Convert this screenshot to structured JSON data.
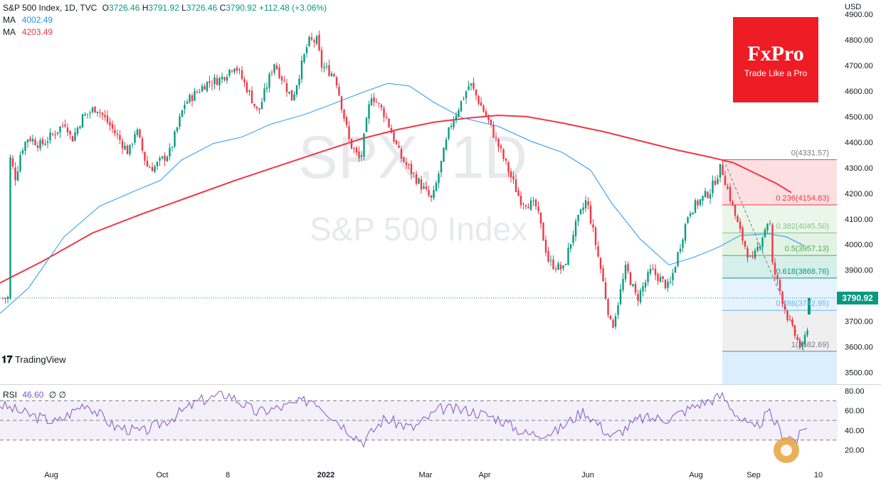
{
  "legend": {
    "symbol_line": "S&P 500 Index, 1D, TVC",
    "o_label": "O",
    "o": "3726.46",
    "h_label": "H",
    "h": "3791.92",
    "l_label": "L",
    "l": "3726.46",
    "c_label": "C",
    "c": "3790.92",
    "change": "+112.48 (+3.06%)",
    "ma_label": "MA",
    "ma1": "4002.49",
    "ma2": "4203.49"
  },
  "watermark": {
    "ticker": "SPX, 1D",
    "name": "S&P 500 Index"
  },
  "brand": {
    "logo": "FxPro",
    "tagline": "Trade Like a Pro"
  },
  "tradingview": "TradingView",
  "price_tag": "3790.92",
  "rsi": {
    "label": "RSI",
    "value": "46.60",
    "extra1": "∅",
    "extra2": "∅"
  },
  "colors": {
    "up": "#089981",
    "down": "#f23645",
    "ma50": "#2196f3",
    "ma200": "#f23645",
    "rsi": "#7e57c2"
  },
  "chart_data": {
    "type": "candlestick",
    "title": "S&P 500 Index, 1D, TVC",
    "price_axis": {
      "unit": "USD",
      "ticks": [
        "4900.00",
        "4800.00",
        "4700.00",
        "4600.00",
        "4500.00",
        "4400.00",
        "4300.00",
        "4200.00",
        "4100.00",
        "4000.00",
        "3900.00",
        "3800.00",
        "3700.00",
        "3600.00",
        "3500.00"
      ],
      "ylim": [
        3460,
        4930
      ]
    },
    "x_axis_labels": [
      "Aug",
      "Oct",
      "8",
      "2022",
      "Mar",
      "Apr",
      "Jun",
      "Aug",
      "Sep",
      "10"
    ],
    "rsi_axis": {
      "ticks": [
        "80.00",
        "60.00",
        "40.00",
        "20.00"
      ],
      "ylim": [
        0,
        85
      ],
      "bands": [
        30,
        50,
        70
      ]
    },
    "close_path": [
      [
        "2021-07-15",
        4360
      ],
      [
        "2021-07-19",
        4258
      ],
      [
        "2021-07-22",
        4370
      ],
      [
        "2021-07-26",
        4420
      ],
      [
        "2021-08-02",
        4388
      ],
      [
        "2021-08-09",
        4432
      ],
      [
        "2021-08-16",
        4480
      ],
      [
        "2021-08-19",
        4405
      ],
      [
        "2021-08-25",
        4496
      ],
      [
        "2021-09-02",
        4537
      ],
      [
        "2021-09-10",
        4460
      ],
      [
        "2021-09-20",
        4357
      ],
      [
        "2021-09-24",
        4455
      ],
      [
        "2021-09-30",
        4307
      ],
      [
        "2021-10-04",
        4300
      ],
      [
        "2021-10-13",
        4363
      ],
      [
        "2021-10-21",
        4550
      ],
      [
        "2021-11-02",
        4630
      ],
      [
        "2021-11-10",
        4646
      ],
      [
        "2021-11-18",
        4704
      ],
      [
        "2021-11-26",
        4594
      ],
      [
        "2021-12-01",
        4513
      ],
      [
        "2021-12-10",
        4712
      ],
      [
        "2021-12-20",
        4568
      ],
      [
        "2021-12-29",
        4793
      ],
      [
        "2022-01-03",
        4796
      ],
      [
        "2022-01-05",
        4700
      ],
      [
        "2022-01-13",
        4660
      ],
      [
        "2022-01-21",
        4398
      ],
      [
        "2022-01-27",
        4326
      ],
      [
        "2022-02-02",
        4589
      ],
      [
        "2022-02-10",
        4504
      ],
      [
        "2022-02-18",
        4348
      ],
      [
        "2022-02-24",
        4288
      ],
      [
        "2022-03-08",
        4170
      ],
      [
        "2022-03-18",
        4463
      ],
      [
        "2022-03-29",
        4631
      ],
      [
        "2022-04-08",
        4488
      ],
      [
        "2022-04-26",
        4175
      ],
      [
        "2022-05-05",
        4147
      ],
      [
        "2022-05-12",
        3930
      ],
      [
        "2022-05-20",
        3901
      ],
      [
        "2022-05-26",
        4057
      ],
      [
        "2022-06-02",
        4176
      ],
      [
        "2022-06-10",
        3900
      ],
      [
        "2022-06-16",
        3666
      ],
      [
        "2022-06-24",
        3911
      ],
      [
        "2022-06-30",
        3785
      ],
      [
        "2022-07-08",
        3899
      ],
      [
        "2022-07-18",
        3830
      ],
      [
        "2022-07-29",
        4130
      ],
      [
        "2022-08-10",
        4210
      ],
      [
        "2022-08-16",
        4305
      ],
      [
        "2022-08-26",
        4058
      ],
      [
        "2022-09-02",
        3924
      ],
      [
        "2022-09-12",
        4110
      ],
      [
        "2022-09-13",
        3932
      ],
      [
        "2022-09-23",
        3693
      ],
      [
        "2022-09-30",
        3585
      ],
      [
        "2022-10-03",
        3678
      ],
      [
        "2022-10-04",
        3790.92
      ]
    ],
    "series": [
      {
        "name": "MA",
        "label": "4002.49",
        "values": [
          [
            0,
            3730
          ],
          [
            40,
            3830
          ],
          [
            90,
            4030
          ],
          [
            140,
            4150
          ],
          [
            190,
            4210
          ],
          [
            225,
            4250
          ],
          [
            255,
            4330
          ],
          [
            300,
            4395
          ],
          [
            340,
            4420
          ],
          [
            380,
            4470
          ],
          [
            430,
            4510
          ],
          [
            470,
            4552
          ],
          [
            510,
            4595
          ],
          [
            545,
            4630
          ],
          [
            575,
            4620
          ],
          [
            610,
            4555
          ],
          [
            650,
            4495
          ],
          [
            700,
            4462
          ],
          [
            745,
            4405
          ],
          [
            790,
            4360
          ],
          [
            830,
            4290
          ],
          [
            860,
            4160
          ],
          [
            900,
            4020
          ],
          [
            940,
            3920
          ],
          [
            975,
            3950
          ],
          [
            1010,
            3990
          ],
          [
            1040,
            4035
          ],
          [
            1080,
            4042
          ],
          [
            1105,
            4030
          ],
          [
            1130,
            3995
          ]
        ]
      },
      {
        "name": "MA",
        "label": "4203.49",
        "values": [
          [
            0,
            3850
          ],
          [
            60,
            3935
          ],
          [
            130,
            4045
          ],
          [
            200,
            4120
          ],
          [
            260,
            4180
          ],
          [
            330,
            4250
          ],
          [
            400,
            4315
          ],
          [
            460,
            4370
          ],
          [
            510,
            4415
          ],
          [
            560,
            4450
          ],
          [
            610,
            4478
          ],
          [
            660,
            4495
          ],
          [
            700,
            4505
          ],
          [
            740,
            4500
          ],
          [
            790,
            4475
          ],
          [
            850,
            4440
          ],
          [
            900,
            4405
          ],
          [
            950,
            4370
          ],
          [
            1000,
            4340
          ],
          [
            1030,
            4320
          ],
          [
            1060,
            4280
          ],
          [
            1090,
            4240
          ],
          [
            1112,
            4203
          ]
        ]
      }
    ],
    "fibonacci": {
      "levels": [
        {
          "ratio": "0",
          "price": 4331.57,
          "label": "0(4331.57)",
          "color": "#787b86"
        },
        {
          "ratio": "0.236",
          "price": 4154.83,
          "label": "0.236(4154.83)",
          "color": "#f23645"
        },
        {
          "ratio": "0.382",
          "price": 4045.5,
          "label": "0.382(4045.50)",
          "color": "#81c784"
        },
        {
          "ratio": "0.5",
          "price": 3957.13,
          "label": "0.5(3957.13)",
          "color": "#4caf50"
        },
        {
          "ratio": "0.618",
          "price": 3868.76,
          "label": "0.618(3868.76)",
          "color": "#089981"
        },
        {
          "ratio": "0.786",
          "price": 3742.95,
          "label": "0.786(3742.95)",
          "color": "#64b5f6"
        },
        {
          "ratio": "1",
          "price": 3582.69,
          "label": "1(3582.69)",
          "color": "#787b86"
        }
      ]
    },
    "rsi_path": [
      [
        0,
        66
      ],
      [
        40,
        56
      ],
      [
        80,
        48
      ],
      [
        120,
        68
      ],
      [
        160,
        44
      ],
      [
        200,
        38
      ],
      [
        240,
        52
      ],
      [
        280,
        70
      ],
      [
        320,
        77
      ],
      [
        360,
        58
      ],
      [
        400,
        64
      ],
      [
        440,
        72
      ],
      [
        480,
        46
      ],
      [
        510,
        28
      ],
      [
        540,
        52
      ],
      [
        580,
        42
      ],
      [
        620,
        62
      ],
      [
        660,
        60
      ],
      [
        700,
        52
      ],
      [
        740,
        36
      ],
      [
        780,
        38
      ],
      [
        820,
        60
      ],
      [
        860,
        33
      ],
      [
        900,
        52
      ],
      [
        940,
        52
      ],
      [
        980,
        66
      ],
      [
        1015,
        75
      ],
      [
        1040,
        52
      ],
      [
        1060,
        40
      ],
      [
        1080,
        58
      ],
      [
        1100,
        36
      ],
      [
        1120,
        30
      ],
      [
        1135,
        47
      ]
    ]
  }
}
